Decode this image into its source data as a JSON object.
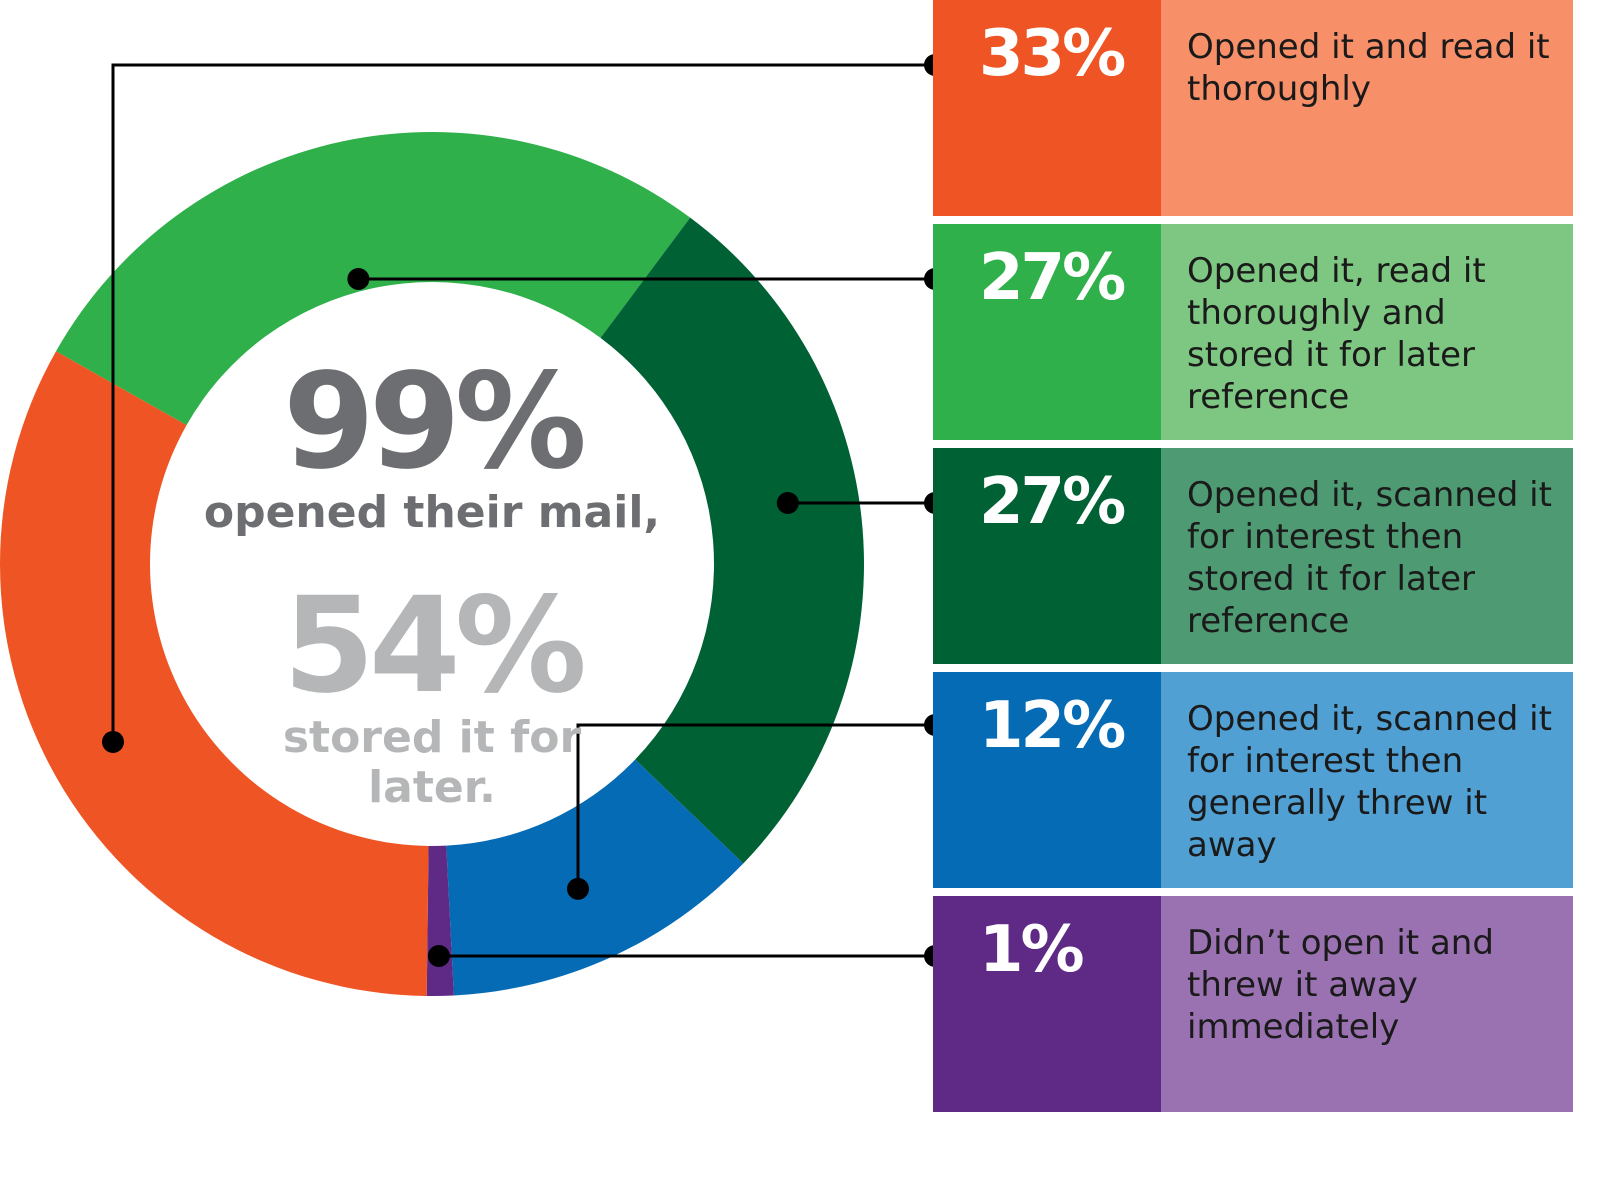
{
  "chart_data": {
    "type": "pie",
    "categories": [
      "Opened it and read it thoroughly",
      "Opened it, read it thoroughly and stored it for later reference",
      "Opened it, scanned it for interest then stored it for later reference",
      "Opened it, scanned it for interest then generally threw it away",
      "Didn’t open it and threw it away immediately"
    ],
    "values": [
      33,
      27,
      27,
      12,
      1
    ],
    "value_labels": [
      "33%",
      "27%",
      "27%",
      "12%",
      "1%"
    ],
    "colors": {
      "strong": [
        "#ef5524",
        "#2fb04b",
        "#006134",
        "#066bb5",
        "#5e2a85"
      ],
      "light": [
        "#f78f68",
        "#7ec782",
        "#4e9a73",
        "#50a0d4",
        "#9a72b2"
      ]
    },
    "center": {
      "stat1_value": "99%",
      "stat1_text": "opened their mail,",
      "stat2_value": "54%",
      "stat2_text_line1": "stored it for",
      "stat2_text_line2": "later."
    }
  },
  "legend_rows": [
    {
      "pct": "33%",
      "desc": "Opened it and read it thoroughly"
    },
    {
      "pct": "27%",
      "desc": "Opened it, read it thoroughly and stored it for later reference"
    },
    {
      "pct": "27%",
      "desc": "Opened it, scanned it for interest then stored it for later reference"
    },
    {
      "pct": "12%",
      "desc": "Opened it, scanned it for interest then generally threw it away"
    },
    {
      "pct": "1%",
      "desc": "Didn’t open it and threw it away immediately"
    }
  ]
}
